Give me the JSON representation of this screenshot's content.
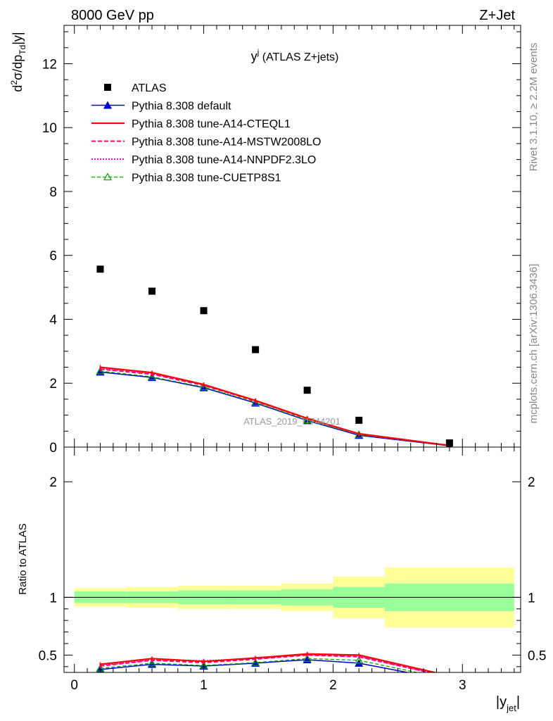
{
  "header": {
    "left": "8000 GeV pp",
    "right": "Z+Jet"
  },
  "side": {
    "rivet": "Rivet 3.1.10, ≥ 2.2M events",
    "mcplots": "mcplots.cern.ch [arXiv:1306.3436]"
  },
  "watermark": "ATLAS_2019_I1744201",
  "colors": {
    "atlas": "#000000",
    "default": "#0000cc",
    "cteql1": "#ff0000",
    "mstw": "#ff0066",
    "nnpdf": "#ff00cc",
    "cuetp": "#00aa00",
    "band_inner": "#99ff99",
    "band_outer": "#ffff99"
  },
  "chart_data": [
    {
      "type": "scatter",
      "title_main": "y",
      "title_sup": "j",
      "title_rest": " (ATLAS Z+jets)",
      "ylabel": "d²σ/dp_Td|y|",
      "xlim": [
        -0.08,
        3.45
      ],
      "ylim": [
        0,
        13.2
      ],
      "yticks": [
        0,
        2,
        4,
        6,
        8,
        10,
        12
      ],
      "x": [
        0.2,
        0.6,
        1.0,
        1.4,
        1.8,
        2.2,
        2.9
      ],
      "bin_edges": [
        0.0,
        0.4,
        0.8,
        1.2,
        1.6,
        2.0,
        2.4,
        3.4
      ],
      "series": [
        {
          "name": "ATLAS",
          "key": "atlas",
          "values": [
            5.57,
            4.88,
            4.27,
            3.05,
            1.78,
            0.84,
            0.13
          ]
        },
        {
          "name": "Pythia 8.308 default",
          "key": "default",
          "values": [
            2.35,
            2.18,
            1.86,
            1.38,
            0.83,
            0.37,
            0.04
          ]
        },
        {
          "name": "Pythia 8.308 tune-A14-CTEQL1",
          "key": "cteql1",
          "values": [
            2.5,
            2.33,
            1.96,
            1.46,
            0.9,
            0.42,
            0.05
          ]
        },
        {
          "name": "Pythia 8.308 tune-A14-MSTW2008LO",
          "key": "mstw",
          "values": [
            2.44,
            2.28,
            1.93,
            1.44,
            0.89,
            0.41,
            0.05
          ]
        },
        {
          "name": "Pythia 8.308 tune-A14-NNPDF2.3LO",
          "key": "nnpdf",
          "values": [
            2.47,
            2.3,
            1.95,
            1.45,
            0.9,
            0.41,
            0.05
          ]
        },
        {
          "name": "Pythia 8.308 tune-CUETP8S1",
          "key": "cuetp",
          "values": [
            2.38,
            2.2,
            1.88,
            1.4,
            0.85,
            0.39,
            0.04
          ]
        }
      ]
    },
    {
      "type": "line",
      "ylabel": "Ratio to ATLAS",
      "xlabel": "|y_jet|",
      "xlim": [
        -0.08,
        3.45
      ],
      "ylim": [
        0.35,
        2.3
      ],
      "yticks": [
        0.5,
        1,
        2
      ],
      "xticks": [
        0,
        1,
        2,
        3
      ],
      "x": [
        0.2,
        0.6,
        1.0,
        1.4,
        1.8,
        2.2,
        2.9
      ],
      "band_inner": [
        [
          0.95,
          1.05
        ],
        [
          0.95,
          1.05
        ],
        [
          0.94,
          1.06
        ],
        [
          0.94,
          1.06
        ],
        [
          0.93,
          1.07
        ],
        [
          0.91,
          1.09
        ],
        [
          0.88,
          1.12
        ]
      ],
      "band_outer": [
        [
          0.92,
          1.08
        ],
        [
          0.91,
          1.09
        ],
        [
          0.9,
          1.1
        ],
        [
          0.9,
          1.1
        ],
        [
          0.88,
          1.12
        ],
        [
          0.82,
          1.18
        ],
        [
          0.74,
          1.26
        ]
      ],
      "series": [
        {
          "name": "Pythia 8.308 default",
          "key": "default",
          "values": [
            0.375,
            0.42,
            0.405,
            0.43,
            0.46,
            0.43,
            0.28
          ]
        },
        {
          "name": "Pythia 8.308 tune-A14-CTEQL1",
          "key": "cteql1",
          "values": [
            0.42,
            0.47,
            0.445,
            0.475,
            0.51,
            0.5,
            0.32
          ]
        },
        {
          "name": "Pythia 8.308 tune-A14-MSTW2008LO",
          "key": "mstw",
          "values": [
            0.405,
            0.455,
            0.435,
            0.465,
            0.5,
            0.485,
            0.31
          ]
        },
        {
          "name": "Pythia 8.308 tune-A14-NNPDF2.3LO",
          "key": "nnpdf",
          "values": [
            0.41,
            0.46,
            0.45,
            0.47,
            0.505,
            0.49,
            0.31
          ]
        },
        {
          "name": "Pythia 8.308 tune-CUETP8S1",
          "key": "cuetp",
          "values": [
            0.385,
            0.43,
            0.41,
            0.435,
            0.47,
            0.455,
            0.29
          ]
        }
      ]
    }
  ]
}
